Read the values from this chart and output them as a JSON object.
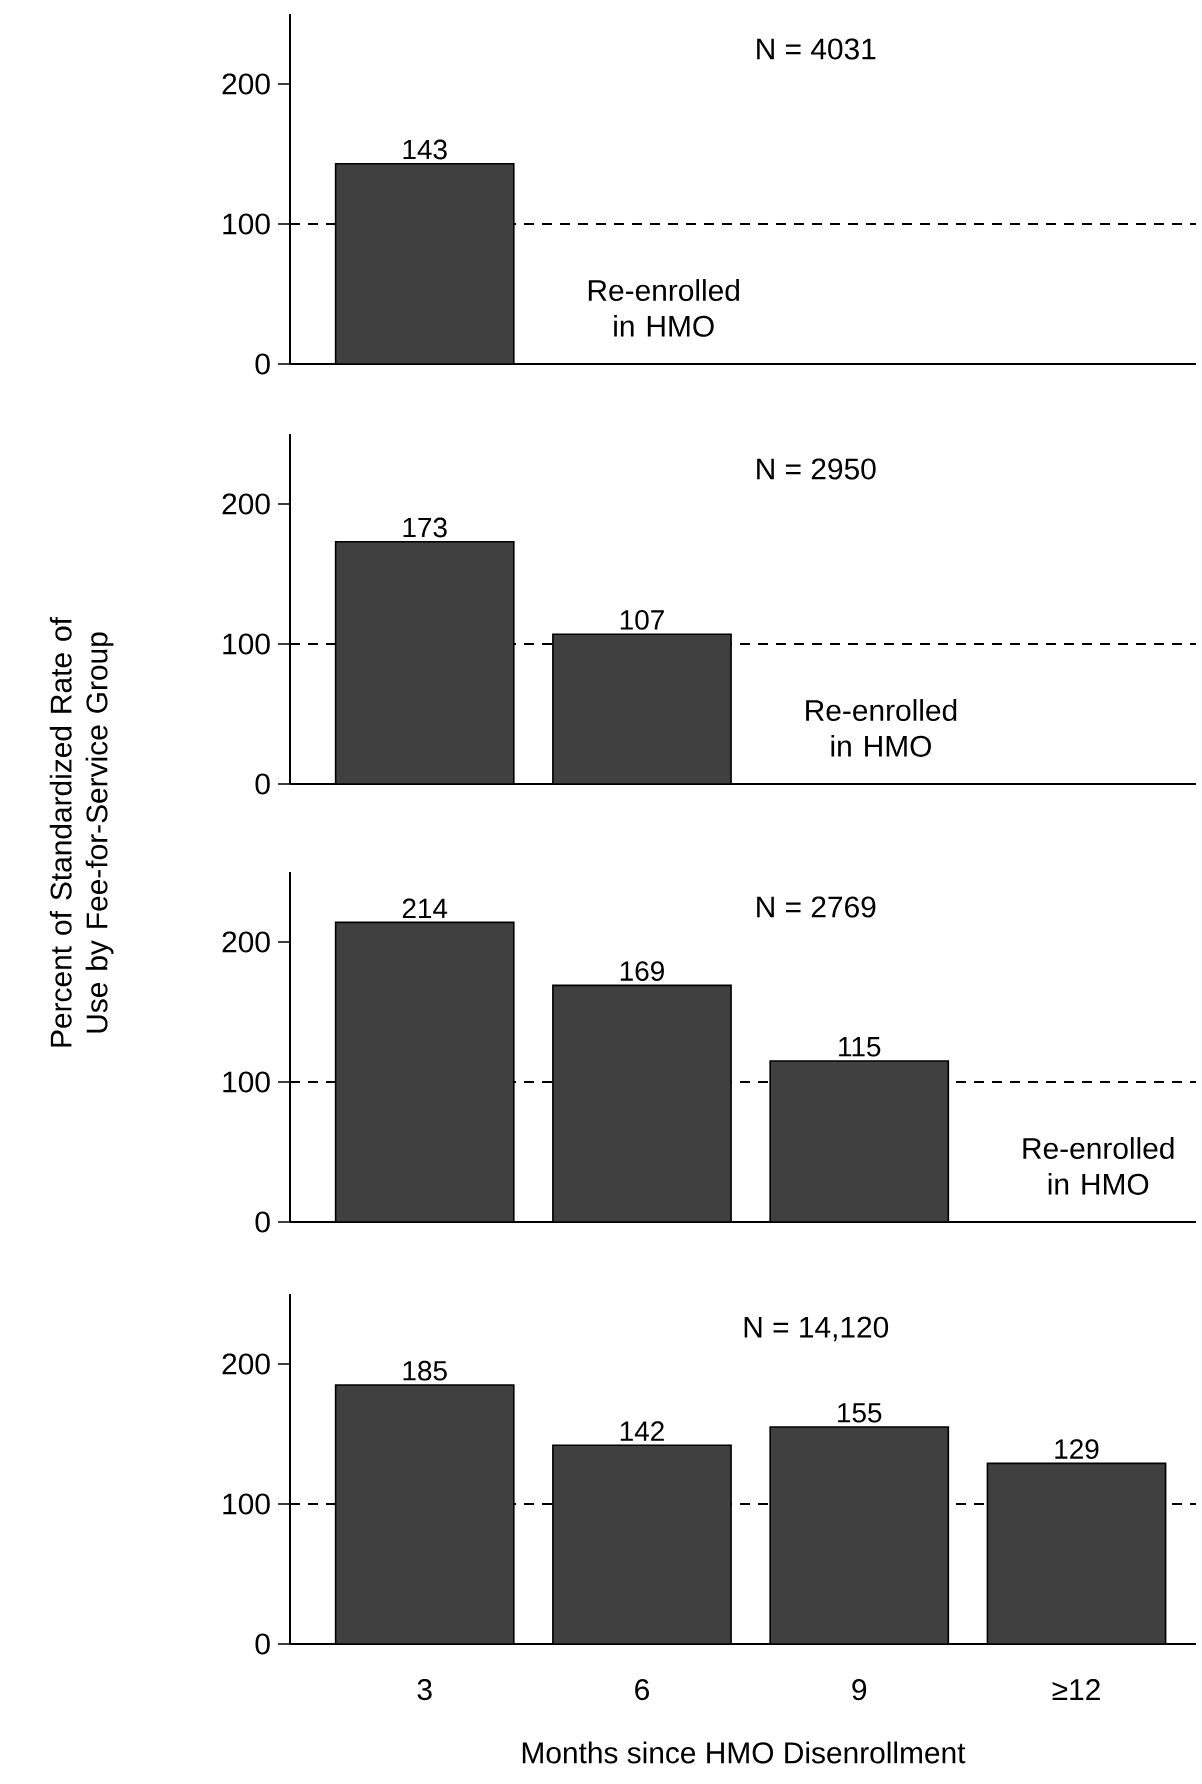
{
  "chart_data": [
    {
      "type": "bar",
      "categories": [
        null,
        null,
        null,
        null
      ],
      "values": [
        143,
        null,
        null,
        null
      ],
      "color": "#404040",
      "ylim": [
        0,
        250
      ],
      "yticks": [
        0,
        100,
        200
      ],
      "data_labels": true,
      "tick_labels": "y",
      "ref_lines": [
        {
          "axis": "y",
          "value": 100,
          "line_style": "dashed"
        }
      ],
      "annotations": [
        "N = 4031",
        "Re-enrolled in HMO"
      ]
    },
    {
      "type": "bar",
      "ylabel": "Percent of Standardized Rate of Use by Fee-for-Service Group",
      "categories": [
        null,
        null,
        null,
        null
      ],
      "values": [
        173,
        107,
        null,
        null
      ],
      "color": "#404040",
      "ylim": [
        0,
        250
      ],
      "yticks": [
        0,
        100,
        200
      ],
      "data_labels": true,
      "tick_labels": "y",
      "ref_lines": [
        {
          "axis": "y",
          "value": 100,
          "line_style": "dashed"
        }
      ],
      "annotations": [
        "N = 2950",
        "Re-enrolled in HMO"
      ]
    },
    {
      "type": "bar",
      "categories": [
        null,
        null,
        null,
        null
      ],
      "values": [
        214,
        169,
        115,
        null
      ],
      "color": "#404040",
      "ylim": [
        0,
        250
      ],
      "yticks": [
        0,
        100,
        200
      ],
      "data_labels": true,
      "tick_labels": "y",
      "ref_lines": [
        {
          "axis": "y",
          "value": 100,
          "line_style": "dashed"
        }
      ],
      "annotations": [
        "N = 2769",
        "Re-enrolled in HMO"
      ]
    },
    {
      "type": "bar",
      "xlabel": "Months since HMO Disenrollment",
      "categories": [
        "3",
        "6",
        "9",
        "≥12"
      ],
      "values": [
        185,
        142,
        155,
        129
      ],
      "color": "#404040",
      "ylim": [
        0,
        250
      ],
      "yticks": [
        0,
        100,
        200
      ],
      "data_labels": true,
      "ref_lines": [
        {
          "axis": "y",
          "value": 100,
          "line_style": "dashed"
        }
      ],
      "annotations": [
        "N = 14,120"
      ]
    }
  ]
}
